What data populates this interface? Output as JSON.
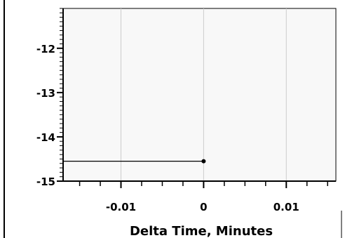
{
  "chart_data": {
    "type": "line",
    "title": "",
    "xlabel": "Delta Time, Minutes",
    "ylabel": "",
    "xlim": [
      -0.017,
      0.016
    ],
    "ylim": [
      -15,
      -11.1
    ],
    "x_ticks": [
      -0.01,
      0,
      0.01
    ],
    "x_tick_labels": [
      "-0.01",
      "0",
      "0.01"
    ],
    "y_ticks": [
      -15,
      -14,
      -13,
      -12
    ],
    "y_tick_labels": [
      "-15",
      "-14",
      "-13",
      "-12"
    ],
    "grid": "vertical",
    "legend": "none",
    "series": [
      {
        "x": [
          -0.017,
          0
        ],
        "y": [
          -14.55,
          -14.55
        ],
        "color": "#000000",
        "marker_at_end": true
      }
    ],
    "colors": {
      "plot_background": "#f8f8f8",
      "grid": "#cccccc",
      "axis": "#000000"
    }
  }
}
